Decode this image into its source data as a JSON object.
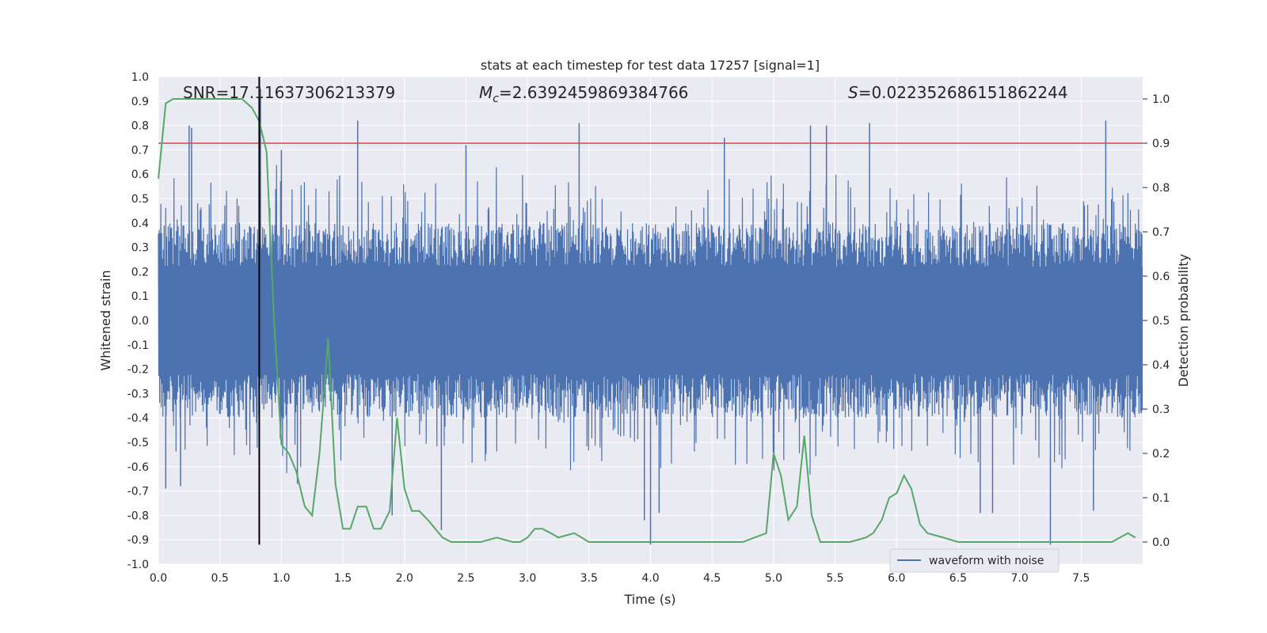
{
  "chart_data": {
    "type": "line",
    "title": "stats at each timestep for test data 17257 [signal=1]",
    "xlabel": "Time (s)",
    "ylabel": "Whitened strain",
    "ylabel_right": "Detection probability",
    "xlim": [
      0,
      8
    ],
    "ylim": [
      -1.0,
      1.0
    ],
    "ylim_right": [
      -0.05,
      1.05
    ],
    "xticks": [
      "0.0",
      "0.5",
      "1.0",
      "1.5",
      "2.0",
      "2.5",
      "3.0",
      "3.5",
      "4.0",
      "4.5",
      "5.0",
      "5.5",
      "6.0",
      "6.5",
      "7.0",
      "7.5"
    ],
    "yticks": [
      "-1.0",
      "-0.9",
      "-0.8",
      "-0.7",
      "-0.6",
      "-0.5",
      "-0.4",
      "-0.3",
      "-0.2",
      "-0.1",
      "0.0",
      "0.1",
      "0.2",
      "0.3",
      "0.4",
      "0.5",
      "0.6",
      "0.7",
      "0.8",
      "0.9",
      "1.0"
    ],
    "yticks_right": [
      "0.0",
      "0.1",
      "0.2",
      "0.3",
      "0.4",
      "0.5",
      "0.6",
      "0.7",
      "0.8",
      "0.9",
      "1.0"
    ],
    "grid": true,
    "legend": {
      "placement": "bottom-right",
      "entries": [
        "waveform with noise"
      ]
    },
    "annotations": {
      "snr": "SNR=17.11637306213379",
      "mc_symbol": "M",
      "mc_sub": "c",
      "mc_value": "=2.6392459869384766",
      "s_symbol": "S",
      "s_value": "=0.022352686151862244"
    },
    "threshold_line": {
      "value_right": 0.9,
      "color": "#c44e52"
    },
    "signal_marker": {
      "x": 0.82,
      "y_range": [
        -0.92,
        1.0
      ],
      "color": "#000000"
    },
    "waveform": {
      "name": "waveform with noise",
      "color": "#4c72b0",
      "dense_amplitude": 0.4,
      "peaks": [
        {
          "x": 0.25,
          "y": 0.8
        },
        {
          "x": 0.27,
          "y": 0.79
        },
        {
          "x": 0.82,
          "y": 1.0
        },
        {
          "x": 0.83,
          "y": 0.95
        },
        {
          "x": 1.0,
          "y": 0.7
        },
        {
          "x": 1.62,
          "y": 0.82
        },
        {
          "x": 2.5,
          "y": 0.72
        },
        {
          "x": 3.42,
          "y": 0.81
        },
        {
          "x": 4.6,
          "y": 0.75
        },
        {
          "x": 5.3,
          "y": 0.8
        },
        {
          "x": 5.43,
          "y": 0.8
        },
        {
          "x": 5.78,
          "y": 0.81
        },
        {
          "x": 7.7,
          "y": 0.82
        },
        {
          "x": 4.0,
          "y": -0.92
        },
        {
          "x": 7.25,
          "y": -0.92
        },
        {
          "x": 2.3,
          "y": -0.86
        },
        {
          "x": 1.9,
          "y": -0.8
        },
        {
          "x": 3.95,
          "y": -0.82
        },
        {
          "x": 4.07,
          "y": -0.79
        },
        {
          "x": 0.06,
          "y": -0.69
        },
        {
          "x": 0.18,
          "y": -0.68
        },
        {
          "x": 1.13,
          "y": -0.67
        },
        {
          "x": 6.68,
          "y": -0.79
        },
        {
          "x": 6.78,
          "y": -0.79
        },
        {
          "x": 7.6,
          "y": -0.78
        }
      ]
    },
    "probability": {
      "color": "#55a868",
      "x": [
        0.0,
        0.06,
        0.12,
        0.18,
        0.25,
        0.32,
        0.4,
        0.5,
        0.6,
        0.68,
        0.76,
        0.82,
        0.88,
        0.94,
        1.0,
        1.06,
        1.12,
        1.19,
        1.25,
        1.31,
        1.38,
        1.44,
        1.5,
        1.56,
        1.62,
        1.69,
        1.75,
        1.81,
        1.88,
        1.94,
        2.0,
        2.06,
        2.12,
        2.19,
        2.25,
        2.31,
        2.38,
        2.5,
        2.62,
        2.75,
        2.88,
        2.94,
        3.0,
        3.06,
        3.12,
        3.19,
        3.25,
        3.38,
        3.5,
        3.62,
        3.75,
        3.88,
        4.0,
        4.25,
        4.5,
        4.75,
        4.94,
        5.0,
        5.06,
        5.12,
        5.19,
        5.25,
        5.31,
        5.38,
        5.5,
        5.62,
        5.75,
        5.81,
        5.88,
        5.94,
        6.0,
        6.06,
        6.12,
        6.19,
        6.25,
        6.38,
        6.5,
        6.75,
        7.0,
        7.25,
        7.5,
        7.62,
        7.75,
        7.88,
        7.94
      ],
      "y": [
        0.82,
        0.99,
        1.0,
        1.0,
        1.0,
        1.0,
        1.0,
        1.0,
        1.0,
        1.0,
        0.98,
        0.95,
        0.88,
        0.5,
        0.22,
        0.2,
        0.16,
        0.08,
        0.06,
        0.2,
        0.46,
        0.13,
        0.03,
        0.03,
        0.08,
        0.08,
        0.03,
        0.03,
        0.07,
        0.28,
        0.12,
        0.07,
        0.07,
        0.05,
        0.03,
        0.01,
        0.0,
        0.0,
        0.0,
        0.01,
        0.0,
        0.0,
        0.01,
        0.03,
        0.03,
        0.02,
        0.01,
        0.02,
        0.0,
        0.0,
        0.0,
        0.0,
        0.0,
        0.0,
        0.0,
        0.0,
        0.02,
        0.2,
        0.15,
        0.05,
        0.08,
        0.24,
        0.06,
        0.0,
        0.0,
        0.0,
        0.01,
        0.02,
        0.05,
        0.1,
        0.11,
        0.15,
        0.12,
        0.04,
        0.02,
        0.01,
        0.0,
        0.0,
        0.0,
        0.0,
        0.0,
        0.0,
        0.0,
        0.02,
        0.01
      ]
    }
  }
}
